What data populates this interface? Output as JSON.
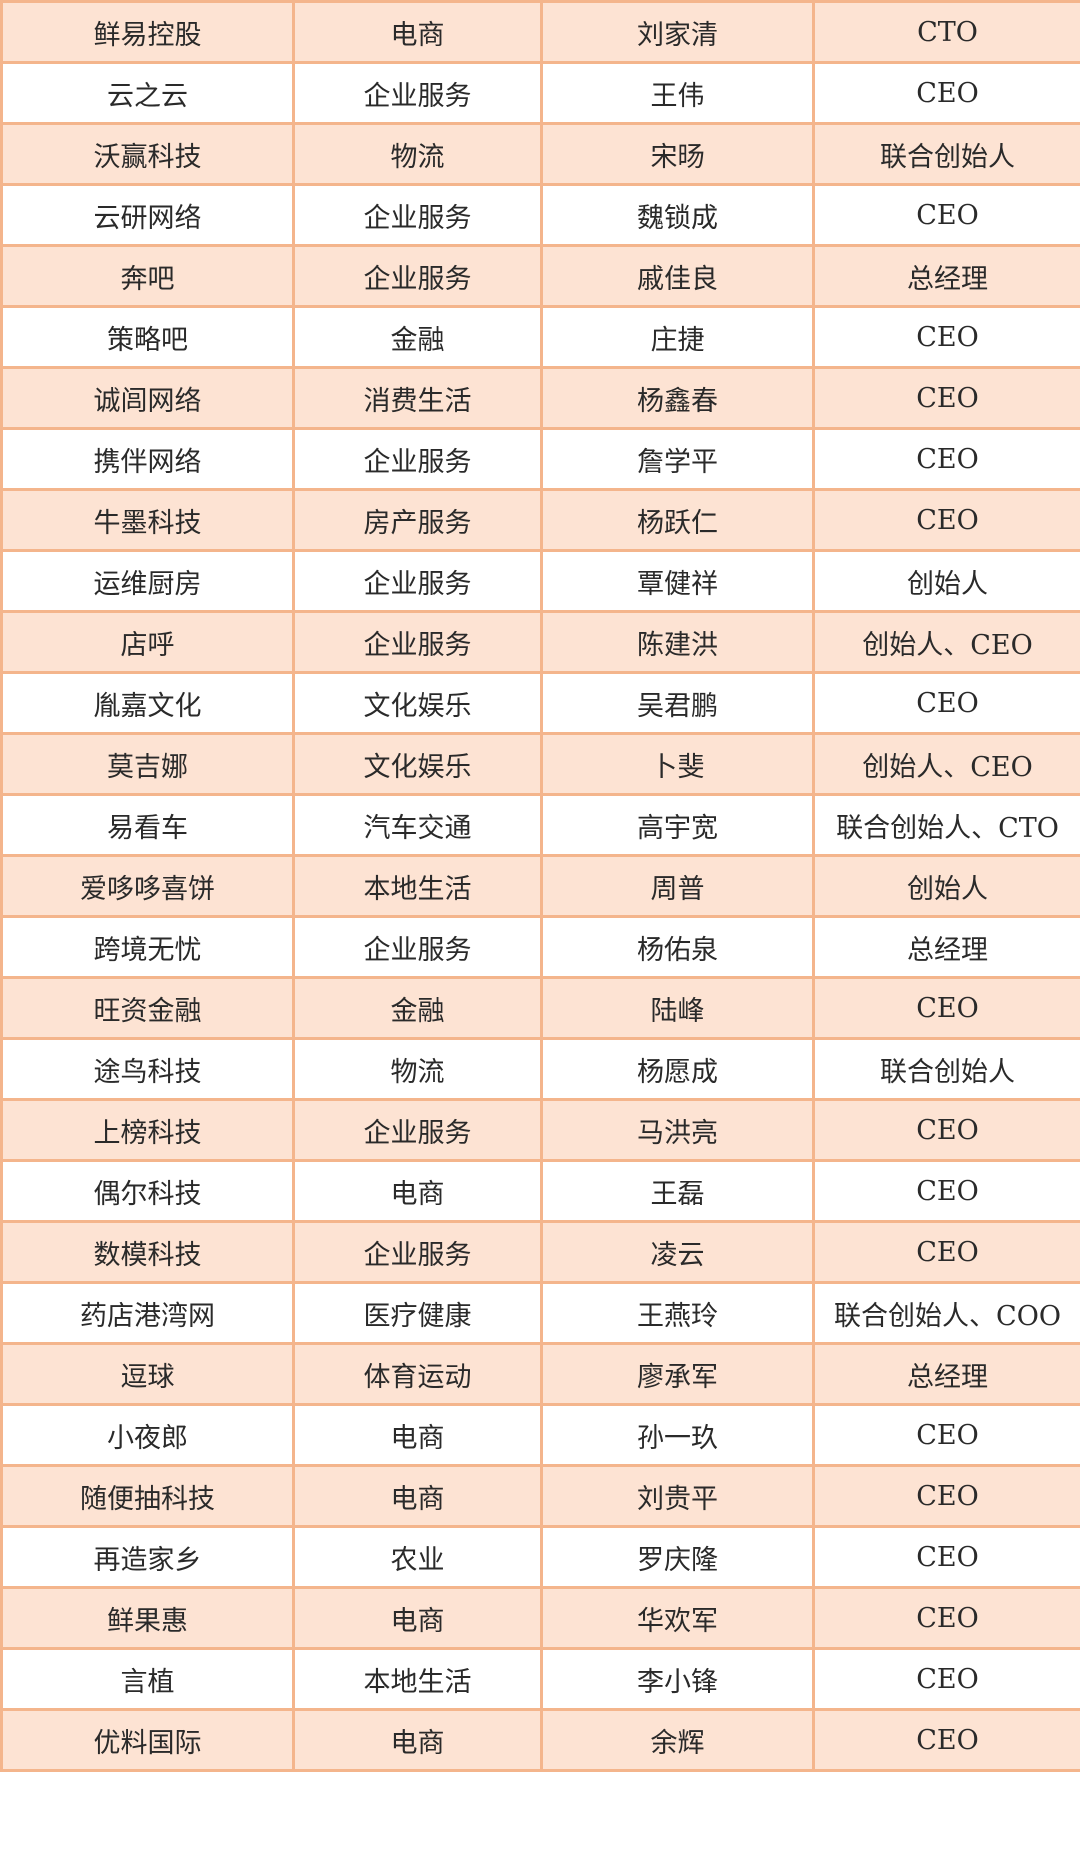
{
  "table": {
    "colors": {
      "border": "#f4b58c",
      "stripe": "#fde3d3",
      "plain": "#ffffff"
    },
    "rows": [
      [
        "鲜易控股",
        "电商",
        "刘家清",
        "CTO"
      ],
      [
        "云之云",
        "企业服务",
        "王伟",
        "CEO"
      ],
      [
        "沃赢科技",
        "物流",
        "宋旸",
        "联合创始人"
      ],
      [
        "云研网络",
        "企业服务",
        "魏锁成",
        "CEO"
      ],
      [
        "奔吧",
        "企业服务",
        "戚佳良",
        "总经理"
      ],
      [
        "策略吧",
        "金融",
        "庄捷",
        "CEO"
      ],
      [
        "诚闾网络",
        "消费生活",
        "杨鑫春",
        "CEO"
      ],
      [
        "携伴网络",
        "企业服务",
        "詹学平",
        "CEO"
      ],
      [
        "牛墨科技",
        "房产服务",
        "杨跃仁",
        "CEO"
      ],
      [
        "运维厨房",
        "企业服务",
        "覃健祥",
        "创始人"
      ],
      [
        "店呼",
        "企业服务",
        "陈建洪",
        "创始人、CEO"
      ],
      [
        "胤嘉文化",
        "文化娱乐",
        "吴君鹏",
        "CEO"
      ],
      [
        "莫吉娜",
        "文化娱乐",
        "卜斐",
        "创始人、CEO"
      ],
      [
        "易看车",
        "汽车交通",
        "高宇宽",
        "联合创始人、CTO"
      ],
      [
        "爱哆哆喜饼",
        "本地生活",
        "周普",
        "创始人"
      ],
      [
        "跨境无忧",
        "企业服务",
        "杨佑泉",
        "总经理"
      ],
      [
        "旺资金融",
        "金融",
        "陆峰",
        "CEO"
      ],
      [
        "途鸟科技",
        "物流",
        "杨愿成",
        "联合创始人"
      ],
      [
        "上榜科技",
        "企业服务",
        "马洪亮",
        "CEO"
      ],
      [
        "偶尔科技",
        "电商",
        "王磊",
        "CEO"
      ],
      [
        "数模科技",
        "企业服务",
        "凌云",
        "CEO"
      ],
      [
        "药店港湾网",
        "医疗健康",
        "王燕玲",
        "联合创始人、COO"
      ],
      [
        "逗球",
        "体育运动",
        "廖承军",
        "总经理"
      ],
      [
        "小夜郎",
        "电商",
        "孙一玖",
        "CEO"
      ],
      [
        "随便抽科技",
        "电商",
        "刘贵平",
        "CEO"
      ],
      [
        "再造家乡",
        "农业",
        "罗庆隆",
        "CEO"
      ],
      [
        "鲜果惠",
        "电商",
        "华欢军",
        "CEO"
      ],
      [
        "言植",
        "本地生活",
        "李小锋",
        "CEO"
      ],
      [
        "优料国际",
        "电商",
        "余辉",
        "CEO"
      ]
    ]
  }
}
